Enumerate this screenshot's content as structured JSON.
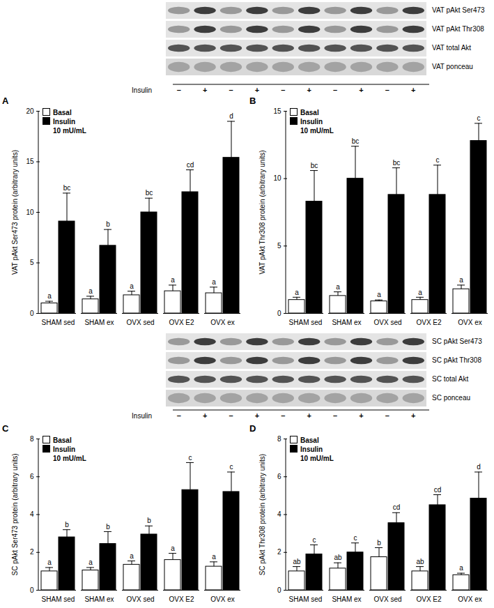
{
  "blots": [
    {
      "rows": [
        "VAT pAkt Ser473",
        "VAT pAkt Thr308",
        "VAT total Akt",
        "VAT ponceau"
      ],
      "insulin_label": "Insulin",
      "lanes": [
        "–",
        "+",
        "–",
        "+",
        "–",
        "+",
        "–",
        "+",
        "–",
        "+"
      ]
    },
    {
      "rows": [
        "SC pAkt Ser473",
        "SC pAkt Thr308",
        "SC total Akt",
        "SC ponceau"
      ],
      "insulin_label": "Insulin",
      "lanes": [
        "–",
        "+",
        "–",
        "+",
        "–",
        "+",
        "–",
        "+",
        "–",
        "+"
      ]
    }
  ],
  "chart_data": [
    {
      "type": "bar",
      "title": "A",
      "y_label": "VAT pAkt Ser473 protein (arbitrary units)",
      "categories": [
        "SHAM sed",
        "SHAM ex",
        "OVX sed",
        "OVX E2",
        "OVX ex"
      ],
      "series": [
        {
          "name": "Basal",
          "color": "#ffffff",
          "values": [
            1.0,
            1.4,
            1.8,
            2.2,
            2.0
          ],
          "errors": [
            0.2,
            0.3,
            0.4,
            0.6,
            0.6
          ],
          "letters": [
            "a",
            "a",
            "a",
            "a",
            "a"
          ]
        },
        {
          "name": "Insulin",
          "color": "#000000",
          "values": [
            9.1,
            6.7,
            10.0,
            12.0,
            15.4
          ],
          "errors": [
            2.8,
            1.6,
            1.4,
            2.2,
            3.6
          ],
          "letters": [
            "bc",
            "b",
            "bc",
            "cd",
            "d"
          ]
        }
      ],
      "legend": "top-left",
      "legend_subtitle": "10 mU/mL",
      "ylim": [
        0,
        20
      ],
      "yticks": [
        0,
        5,
        10,
        15,
        20
      ]
    },
    {
      "type": "bar",
      "title": "B",
      "y_label": "VAT pAkt Thr308 protein (arbitrary units)",
      "categories": [
        "SHAM sed",
        "SHAM ex",
        "OVX sed",
        "OVX E2",
        "OVX ex"
      ],
      "series": [
        {
          "name": "Basal",
          "color": "#ffffff",
          "values": [
            1.0,
            1.3,
            0.9,
            1.0,
            1.8
          ],
          "errors": [
            0.2,
            0.3,
            0.1,
            0.2,
            0.3
          ],
          "letters": [
            "a",
            "a",
            "a",
            "a",
            "a"
          ]
        },
        {
          "name": "Insulin",
          "color": "#000000",
          "values": [
            8.3,
            10.0,
            8.8,
            8.8,
            12.8
          ],
          "errors": [
            2.3,
            2.4,
            2.0,
            2.2,
            1.3
          ],
          "letters": [
            "bc",
            "bc",
            "bc",
            "c",
            "c"
          ]
        }
      ],
      "legend": "top-left",
      "legend_subtitle": "10 mU/mL",
      "ylim": [
        0,
        15
      ],
      "yticks": [
        0,
        5,
        10,
        15
      ]
    },
    {
      "type": "bar",
      "title": "C",
      "y_label": "SC pAkt Ser473 protein (arbitrary units)",
      "categories": [
        "SHAM sed",
        "SHAM ex",
        "OVX sed",
        "OVX E2",
        "OVX ex"
      ],
      "series": [
        {
          "name": "Basal",
          "color": "#ffffff",
          "values": [
            1.0,
            1.05,
            1.35,
            1.6,
            1.25
          ],
          "errors": [
            0.2,
            0.15,
            0.2,
            0.35,
            0.25
          ],
          "letters": [
            "a",
            "a",
            "a",
            "a",
            "a"
          ]
        },
        {
          "name": "Insulin",
          "color": "#000000",
          "values": [
            2.8,
            2.45,
            2.95,
            5.3,
            5.2
          ],
          "errors": [
            0.4,
            0.65,
            0.45,
            1.45,
            1.05
          ],
          "letters": [
            "b",
            "b",
            "b",
            "c",
            "c"
          ]
        }
      ],
      "legend": "top-left",
      "legend_subtitle": "10 mU/mL",
      "ylim": [
        0,
        8
      ],
      "yticks": [
        0,
        2,
        4,
        6,
        8
      ]
    },
    {
      "type": "bar",
      "title": "D",
      "y_label": "SC pAkt Thr308 protein (arbitrary units)",
      "categories": [
        "SHAM sed",
        "SHAM ex",
        "OVX sed",
        "OVX E2",
        "OVX ex"
      ],
      "series": [
        {
          "name": "Basal",
          "color": "#ffffff",
          "values": [
            1.0,
            1.15,
            1.75,
            1.0,
            0.8
          ],
          "errors": [
            0.25,
            0.3,
            0.5,
            0.25,
            0.1
          ],
          "letters": [
            "ab",
            "ab",
            "b",
            "ab",
            "a"
          ]
        },
        {
          "name": "Insulin",
          "color": "#000000",
          "values": [
            1.9,
            2.0,
            3.55,
            4.5,
            4.85
          ],
          "errors": [
            0.5,
            0.5,
            0.55,
            0.55,
            1.4
          ],
          "letters": [
            "c",
            "c",
            "cd",
            "cd",
            "d"
          ]
        }
      ],
      "legend": "top-left",
      "legend_subtitle": "10 mU/mL",
      "ylim": [
        0,
        8
      ],
      "yticks": [
        0,
        2,
        4,
        6,
        8
      ]
    }
  ]
}
